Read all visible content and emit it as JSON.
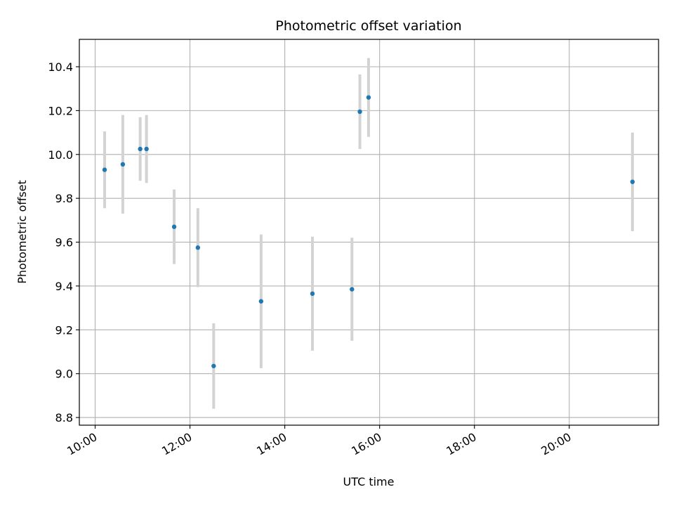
{
  "chart_data": {
    "type": "scatter",
    "title": "Photometric offset variation",
    "xlabel": "UTC time",
    "ylabel": "Photometric offset",
    "xlim": [
      "09:40",
      "21:53"
    ],
    "ylim": [
      8.765,
      10.525
    ],
    "x_ticks": [
      "10:00",
      "12:00",
      "14:00",
      "16:00",
      "18:00",
      "20:00"
    ],
    "y_ticks": [
      8.8,
      9.0,
      9.2,
      9.4,
      9.6,
      9.8,
      10.0,
      10.2,
      10.4
    ],
    "grid": true,
    "colors": {
      "point": "#1f77b4",
      "errorbar": "#d3d3d3",
      "grid": "#b0b0b0"
    },
    "points": [
      {
        "x": "10:12",
        "y": 9.93,
        "err": 0.175
      },
      {
        "x": "10:35",
        "y": 9.955,
        "err": 0.225
      },
      {
        "x": "10:57",
        "y": 10.025,
        "err": 0.145
      },
      {
        "x": "11:05",
        "y": 10.025,
        "err": 0.155
      },
      {
        "x": "11:40",
        "y": 9.67,
        "err": 0.17
      },
      {
        "x": "12:10",
        "y": 9.575,
        "err": 0.18
      },
      {
        "x": "12:30",
        "y": 9.035,
        "err": 0.195
      },
      {
        "x": "13:30",
        "y": 9.33,
        "err": 0.305
      },
      {
        "x": "14:35",
        "y": 9.365,
        "err": 0.26
      },
      {
        "x": "15:25",
        "y": 9.385,
        "err": 0.235
      },
      {
        "x": "15:35",
        "y": 10.195,
        "err": 0.17
      },
      {
        "x": "15:46",
        "y": 10.26,
        "err": 0.18
      },
      {
        "x": "21:20",
        "y": 9.875,
        "err": 0.225
      }
    ]
  }
}
